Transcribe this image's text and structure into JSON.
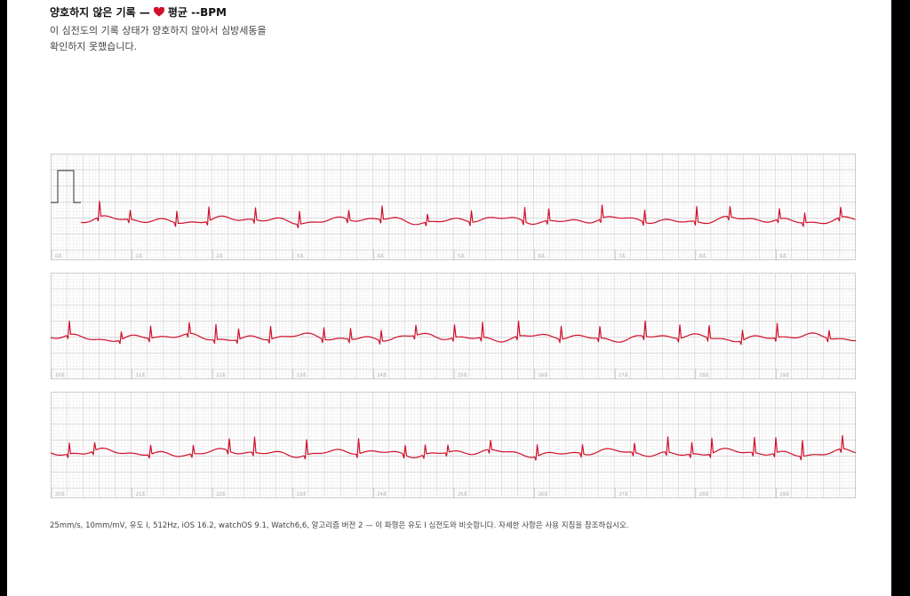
{
  "header": {
    "title": "양호하지 않은 기록 —",
    "average": "평균 --BPM"
  },
  "description": [
    "이 심전도의 기록 상태가 양호하지 않아서 심방세동을",
    "확인하지 못했습니다."
  ],
  "strips": [
    {
      "labels": [
        "0초",
        "1초",
        "2초",
        "3초",
        "4초",
        "5초",
        "6초",
        "7초",
        "8초",
        "9초"
      ]
    },
    {
      "labels": [
        "10초",
        "11초",
        "12초",
        "13초",
        "14초",
        "15초",
        "16초",
        "17초",
        "18초",
        "19초"
      ]
    },
    {
      "labels": [
        "20초",
        "21초",
        "22초",
        "23초",
        "24초",
        "25초",
        "26초",
        "27초",
        "28초",
        "29초"
      ]
    }
  ],
  "footer": "25mm/s, 10mm/mV, 유도 I, 512Hz, iOS 16.2, watchOS 9.1, Watch6,6, 알고리즘 버전 2 — 이 파형은 유도 I 심전도와 비슷합니다. 자세한 사항은 사용 지침을 참조하십시오."
}
